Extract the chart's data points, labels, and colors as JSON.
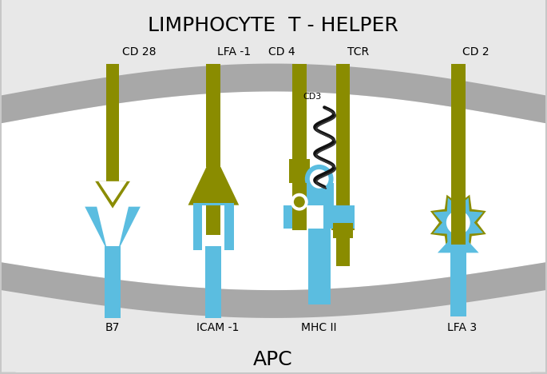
{
  "bg_outer": "#c8c8c8",
  "bg_inner": "#e8e8e8",
  "membrane_color": "#a8a8a8",
  "olive": "#8a8c00",
  "blue": "#5bbde0",
  "white": "#ffffff",
  "dark": "#1a1a1a",
  "title_top": "LIMPHOCYTE  T - HELPER",
  "title_bottom": "APC",
  "label_cd28": "CD 28",
  "label_lfa1": "LFA -1",
  "label_cd4": "CD 4",
  "label_tcr": "TCR",
  "label_cd2": "CD 2",
  "label_cd3": "CD3",
  "label_b7": "B7",
  "label_icam1": "ICAM -1",
  "label_mhc2": "MHC II",
  "label_lfa3": "LFA 3",
  "figw": 6.85,
  "figh": 4.68,
  "dpi": 100
}
